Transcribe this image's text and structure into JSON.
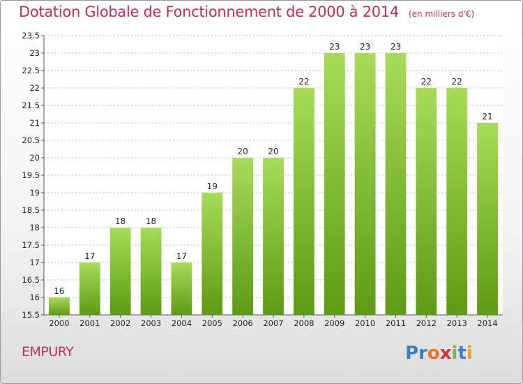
{
  "header": {
    "title": "Dotation Globale de Fonctionnement de 2000 à 2014",
    "subtitle": "(en milliers d'€)"
  },
  "footer": {
    "commune": "EMPURY",
    "logo_text": "Proxiti",
    "logo_colors": [
      "#3a7fc4",
      "#3a7fc4",
      "#e8732a",
      "#d8342e",
      "#7ab640",
      "#3a7fc4",
      "#e8a32a"
    ]
  },
  "colors": {
    "bar_light": "#a6dc58",
    "bar_dark": "#5f9a14",
    "title": "#c0305a",
    "grid": "#b8b8b8"
  },
  "chart_data": {
    "type": "bar",
    "categories": [
      "2000",
      "2001",
      "2002",
      "2003",
      "2004",
      "2005",
      "2006",
      "2007",
      "2008",
      "2009",
      "2010",
      "2011",
      "2012",
      "2013",
      "2014"
    ],
    "values": [
      16,
      17,
      18,
      18,
      17,
      19,
      20,
      20,
      22,
      23,
      23,
      23,
      22,
      22,
      21
    ],
    "data_labels": [
      "16",
      "17",
      "18",
      "18",
      "17",
      "19",
      "20",
      "20",
      "22",
      "23",
      "23",
      "23",
      "22",
      "22",
      "21"
    ],
    "ylim": [
      15.5,
      23.5
    ],
    "yticks": [
      15.5,
      16,
      16.5,
      17,
      17.5,
      18,
      18.5,
      19,
      19.5,
      20,
      20.5,
      21,
      21.5,
      22,
      22.5,
      23,
      23.5
    ],
    "ytick_labels": [
      "15.5",
      "16",
      "16.5",
      "17",
      "17.5",
      "18",
      "18.5",
      "19",
      "19.5",
      "20",
      "20.5",
      "21",
      "21.5",
      "22",
      "22.5",
      "23",
      "23.5"
    ],
    "grid": true,
    "title": "Dotation Globale de Fonctionnement de 2000 à 2014",
    "xlabel": "",
    "ylabel": ""
  }
}
